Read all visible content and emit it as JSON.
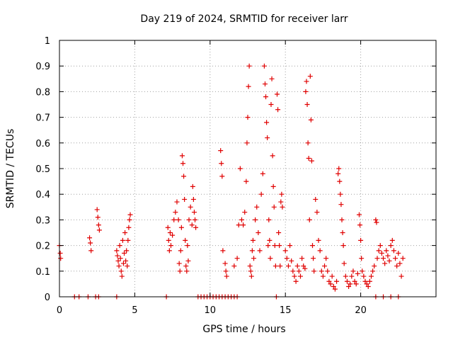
{
  "chart_data": {
    "type": "scatter",
    "title": "Day 219 of 2024, SRMTID for receiver larr",
    "xlabel": "GPS time / hours",
    "ylabel": "SRMTID / TECUs",
    "xlim": [
      0,
      25
    ],
    "ylim": [
      0,
      1
    ],
    "x_ticks": [
      0,
      5,
      10,
      15,
      20
    ],
    "x_tick_labels": [
      "0",
      "5",
      "10",
      "15",
      "20"
    ],
    "y_ticks": [
      0,
      0.1,
      0.2,
      0.3,
      0.4,
      0.5,
      0.6,
      0.7,
      0.8,
      0.9,
      1
    ],
    "y_tick_labels": [
      "0",
      "0.1",
      "0.2",
      "0.3",
      "0.4",
      "0.5",
      "0.6",
      "0.7",
      "0.8",
      "0.9",
      "1"
    ],
    "grid": true,
    "marker": "+",
    "marker_color": "#e00000",
    "series": [
      {
        "name": "SRMTID",
        "points": [
          [
            0.0,
            0.2
          ],
          [
            0.05,
            0.17
          ],
          [
            0.08,
            0.15
          ],
          [
            1.0,
            0.0
          ],
          [
            1.3,
            0.0
          ],
          [
            1.9,
            0.0
          ],
          [
            2.4,
            0.0
          ],
          [
            2.6,
            0.0
          ],
          [
            2.0,
            0.23
          ],
          [
            2.05,
            0.21
          ],
          [
            2.1,
            0.18
          ],
          [
            2.5,
            0.34
          ],
          [
            2.55,
            0.31
          ],
          [
            2.6,
            0.28
          ],
          [
            2.65,
            0.26
          ],
          [
            3.8,
            0.0
          ],
          [
            3.8,
            0.18
          ],
          [
            3.85,
            0.16
          ],
          [
            3.9,
            0.14
          ],
          [
            3.95,
            0.12
          ],
          [
            4.0,
            0.2
          ],
          [
            4.05,
            0.15
          ],
          [
            4.1,
            0.1
          ],
          [
            4.15,
            0.08
          ],
          [
            4.2,
            0.22
          ],
          [
            4.25,
            0.13
          ],
          [
            4.3,
            0.17
          ],
          [
            4.35,
            0.25
          ],
          [
            4.4,
            0.14
          ],
          [
            4.45,
            0.18
          ],
          [
            4.5,
            0.12
          ],
          [
            4.55,
            0.22
          ],
          [
            4.6,
            0.27
          ],
          [
            4.65,
            0.3
          ],
          [
            4.7,
            0.32
          ],
          [
            7.1,
            0.0
          ],
          [
            7.2,
            0.27
          ],
          [
            7.25,
            0.22
          ],
          [
            7.3,
            0.18
          ],
          [
            7.35,
            0.25
          ],
          [
            7.4,
            0.2
          ],
          [
            7.5,
            0.24
          ],
          [
            7.6,
            0.3
          ],
          [
            7.7,
            0.33
          ],
          [
            7.8,
            0.37
          ],
          [
            7.9,
            0.3
          ],
          [
            7.95,
            0.13
          ],
          [
            8.0,
            0.1
          ],
          [
            8.05,
            0.18
          ],
          [
            8.1,
            0.27
          ],
          [
            8.15,
            0.55
          ],
          [
            8.2,
            0.52
          ],
          [
            8.25,
            0.47
          ],
          [
            8.3,
            0.38
          ],
          [
            8.35,
            0.22
          ],
          [
            8.4,
            0.12
          ],
          [
            8.45,
            0.1
          ],
          [
            8.5,
            0.2
          ],
          [
            8.55,
            0.14
          ],
          [
            8.6,
            0.3
          ],
          [
            8.7,
            0.35
          ],
          [
            8.8,
            0.28
          ],
          [
            8.85,
            0.43
          ],
          [
            8.9,
            0.38
          ],
          [
            8.95,
            0.33
          ],
          [
            9.0,
            0.3
          ],
          [
            9.05,
            0.27
          ],
          [
            9.2,
            0.0
          ],
          [
            9.4,
            0.0
          ],
          [
            9.6,
            0.0
          ],
          [
            9.8,
            0.0
          ],
          [
            10.0,
            0.0
          ],
          [
            10.2,
            0.0
          ],
          [
            10.4,
            0.0
          ],
          [
            10.6,
            0.0
          ],
          [
            10.8,
            0.0
          ],
          [
            11.0,
            0.0
          ],
          [
            11.2,
            0.0
          ],
          [
            11.4,
            0.0
          ],
          [
            11.6,
            0.0
          ],
          [
            11.8,
            0.0
          ],
          [
            10.7,
            0.57
          ],
          [
            10.75,
            0.52
          ],
          [
            10.8,
            0.47
          ],
          [
            10.85,
            0.18
          ],
          [
            11.0,
            0.13
          ],
          [
            11.05,
            0.1
          ],
          [
            11.1,
            0.08
          ],
          [
            11.6,
            0.12
          ],
          [
            11.8,
            0.15
          ],
          [
            11.9,
            0.28
          ],
          [
            12.0,
            0.5
          ],
          [
            12.1,
            0.3
          ],
          [
            12.2,
            0.28
          ],
          [
            12.3,
            0.33
          ],
          [
            12.4,
            0.45
          ],
          [
            12.45,
            0.6
          ],
          [
            12.5,
            0.7
          ],
          [
            12.55,
            0.82
          ],
          [
            12.6,
            0.9
          ],
          [
            12.65,
            0.12
          ],
          [
            12.7,
            0.1
          ],
          [
            12.75,
            0.08
          ],
          [
            12.8,
            0.18
          ],
          [
            12.85,
            0.22
          ],
          [
            12.9,
            0.15
          ],
          [
            13.0,
            0.3
          ],
          [
            13.1,
            0.35
          ],
          [
            13.2,
            0.25
          ],
          [
            13.3,
            0.18
          ],
          [
            13.4,
            0.4
          ],
          [
            13.5,
            0.48
          ],
          [
            13.6,
            0.9
          ],
          [
            13.65,
            0.83
          ],
          [
            13.7,
            0.78
          ],
          [
            13.75,
            0.68
          ],
          [
            13.8,
            0.62
          ],
          [
            13.85,
            0.2
          ],
          [
            13.9,
            0.3
          ],
          [
            13.95,
            0.22
          ],
          [
            14.0,
            0.15
          ],
          [
            14.05,
            0.75
          ],
          [
            14.1,
            0.85
          ],
          [
            14.15,
            0.55
          ],
          [
            14.2,
            0.43
          ],
          [
            14.25,
            0.35
          ],
          [
            14.3,
            0.2
          ],
          [
            14.35,
            0.12
          ],
          [
            14.4,
            0.0
          ],
          [
            14.45,
            0.79
          ],
          [
            14.5,
            0.73
          ],
          [
            14.55,
            0.25
          ],
          [
            14.6,
            0.2
          ],
          [
            14.65,
            0.12
          ],
          [
            14.7,
            0.37
          ],
          [
            14.75,
            0.4
          ],
          [
            14.8,
            0.35
          ],
          [
            15.0,
            0.18
          ],
          [
            15.1,
            0.15
          ],
          [
            15.2,
            0.12
          ],
          [
            15.3,
            0.2
          ],
          [
            15.4,
            0.14
          ],
          [
            15.5,
            0.1
          ],
          [
            15.6,
            0.08
          ],
          [
            15.7,
            0.06
          ],
          [
            15.8,
            0.12
          ],
          [
            15.9,
            0.1
          ],
          [
            16.0,
            0.08
          ],
          [
            16.1,
            0.15
          ],
          [
            16.2,
            0.12
          ],
          [
            16.3,
            0.11
          ],
          [
            16.35,
            0.8
          ],
          [
            16.4,
            0.84
          ],
          [
            16.45,
            0.75
          ],
          [
            16.5,
            0.6
          ],
          [
            16.55,
            0.54
          ],
          [
            16.6,
            0.3
          ],
          [
            16.65,
            0.86
          ],
          [
            16.7,
            0.69
          ],
          [
            16.75,
            0.53
          ],
          [
            16.8,
            0.2
          ],
          [
            16.85,
            0.15
          ],
          [
            16.9,
            0.1
          ],
          [
            17.0,
            0.38
          ],
          [
            17.1,
            0.33
          ],
          [
            17.2,
            0.22
          ],
          [
            17.3,
            0.18
          ],
          [
            17.4,
            0.1
          ],
          [
            17.5,
            0.08
          ],
          [
            17.6,
            0.12
          ],
          [
            17.7,
            0.15
          ],
          [
            17.8,
            0.1
          ],
          [
            17.9,
            0.06
          ],
          [
            18.0,
            0.05
          ],
          [
            18.1,
            0.08
          ],
          [
            18.2,
            0.04
          ],
          [
            18.3,
            0.03
          ],
          [
            18.4,
            0.06
          ],
          [
            18.5,
            0.48
          ],
          [
            18.55,
            0.5
          ],
          [
            18.6,
            0.45
          ],
          [
            18.65,
            0.4
          ],
          [
            18.7,
            0.36
          ],
          [
            18.75,
            0.3
          ],
          [
            18.8,
            0.25
          ],
          [
            18.85,
            0.2
          ],
          [
            18.9,
            0.13
          ],
          [
            19.0,
            0.08
          ],
          [
            19.1,
            0.06
          ],
          [
            19.2,
            0.04
          ],
          [
            19.3,
            0.05
          ],
          [
            19.4,
            0.08
          ],
          [
            19.5,
            0.1
          ],
          [
            19.6,
            0.06
          ],
          [
            19.7,
            0.05
          ],
          [
            19.8,
            0.09
          ],
          [
            19.9,
            0.32
          ],
          [
            19.95,
            0.28
          ],
          [
            20.0,
            0.22
          ],
          [
            20.05,
            0.15
          ],
          [
            20.1,
            0.1
          ],
          [
            20.2,
            0.08
          ],
          [
            20.3,
            0.06
          ],
          [
            20.4,
            0.05
          ],
          [
            20.5,
            0.04
          ],
          [
            20.6,
            0.06
          ],
          [
            20.7,
            0.08
          ],
          [
            20.8,
            0.1
          ],
          [
            20.9,
            0.12
          ],
          [
            21.0,
            0.3
          ],
          [
            21.05,
            0.29
          ],
          [
            21.1,
            0.15
          ],
          [
            21.2,
            0.18
          ],
          [
            21.3,
            0.2
          ],
          [
            21.4,
            0.17
          ],
          [
            21.5,
            0.15
          ],
          [
            21.6,
            0.13
          ],
          [
            21.7,
            0.18
          ],
          [
            21.8,
            0.16
          ],
          [
            21.9,
            0.14
          ],
          [
            22.0,
            0.2
          ],
          [
            22.1,
            0.22
          ],
          [
            22.2,
            0.18
          ],
          [
            22.3,
            0.15
          ],
          [
            22.4,
            0.12
          ],
          [
            22.5,
            0.17
          ],
          [
            22.6,
            0.13
          ],
          [
            22.7,
            0.08
          ],
          [
            22.8,
            0.15
          ],
          [
            21.0,
            0.0
          ],
          [
            21.5,
            0.0
          ],
          [
            22.0,
            0.0
          ],
          [
            22.5,
            0.0
          ]
        ]
      }
    ]
  }
}
